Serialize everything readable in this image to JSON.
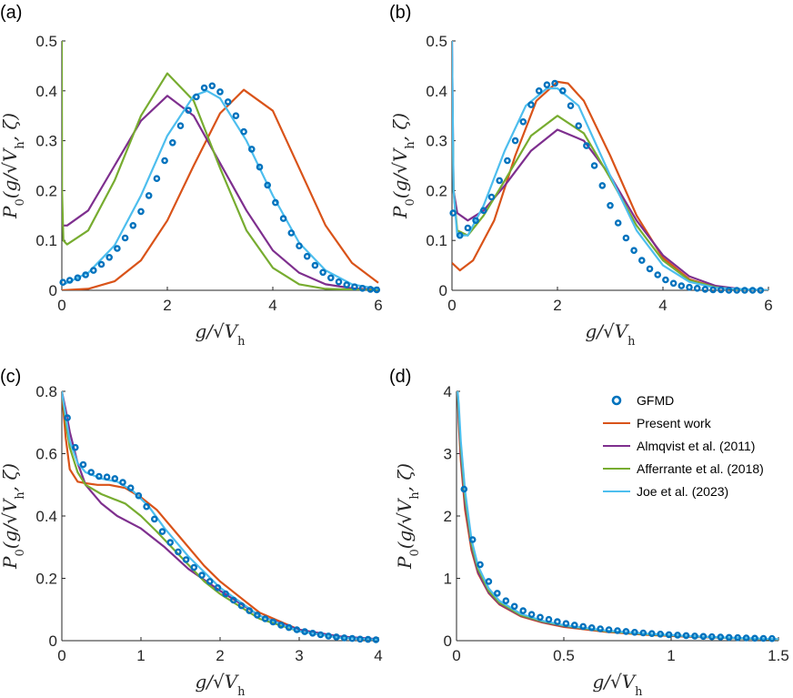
{
  "figure": {
    "colors": {
      "gfmd": "#0072BD",
      "present": "#D95319",
      "almqvist": "#7E2F8E",
      "afferrante": "#77AC30",
      "joe": "#4DBEEE"
    }
  },
  "legend": {
    "items": [
      {
        "key": "gfmd",
        "label": "GFMD",
        "style": "marker"
      },
      {
        "key": "present",
        "label": "Present work",
        "style": "line"
      },
      {
        "key": "almqvist",
        "label": "Almqvist et al. (2011)",
        "style": "line"
      },
      {
        "key": "afferrante",
        "label": "Afferrante et al. (2018)",
        "style": "line"
      },
      {
        "key": "joe",
        "label": "Joe et al. (2023)",
        "style": "line"
      }
    ]
  },
  "chart_data": [
    {
      "panel": "(a)",
      "type": "line",
      "xlabel": "g/√V_h",
      "ylabel": "P_0(g/√V_h, ζ)",
      "xlim": [
        0,
        6
      ],
      "ylim": [
        0,
        0.5
      ],
      "xticks": [
        0,
        2,
        4,
        6
      ],
      "yticks": [
        0,
        0.1,
        0.2,
        0.3,
        0.4,
        0.5
      ],
      "series": [
        {
          "name": "Present work",
          "key": "present",
          "x": [
            0,
            0.5,
            1,
            1.5,
            2,
            2.5,
            3,
            3.45,
            4,
            4.5,
            5,
            5.5,
            6
          ],
          "y": [
            0,
            0.003,
            0.018,
            0.06,
            0.14,
            0.25,
            0.355,
            0.402,
            0.36,
            0.245,
            0.13,
            0.055,
            0.015
          ]
        },
        {
          "name": "Almqvist et al. (2011)",
          "key": "almqvist",
          "x": [
            0,
            0.1,
            0.5,
            1,
            1.5,
            2,
            2.5,
            3,
            3.5,
            4,
            4.5,
            5,
            5.5,
            6
          ],
          "y": [
            0.13,
            0.13,
            0.16,
            0.25,
            0.34,
            0.39,
            0.35,
            0.255,
            0.16,
            0.08,
            0.035,
            0.012,
            0.004,
            0.001
          ]
        },
        {
          "name": "Afferrante et al. (2018)",
          "key": "afferrante",
          "x": [
            0,
            0.003,
            0.03,
            0.1,
            0.5,
            1,
            1.5,
            2,
            2.5,
            3,
            3.5,
            4,
            4.5,
            5,
            6
          ],
          "y": [
            0.5,
            0.2,
            0.1,
            0.092,
            0.12,
            0.22,
            0.35,
            0.435,
            0.38,
            0.245,
            0.12,
            0.045,
            0.012,
            0.003,
            0
          ]
        },
        {
          "name": "Joe et al. (2023)",
          "key": "joe",
          "x": [
            0,
            0.1,
            0.5,
            1,
            1.5,
            2,
            2.5,
            2.75,
            3,
            3.5,
            4,
            4.5,
            5,
            5.5,
            6
          ],
          "y": [
            0.01,
            0.015,
            0.035,
            0.09,
            0.19,
            0.31,
            0.39,
            0.4,
            0.385,
            0.3,
            0.19,
            0.095,
            0.04,
            0.012,
            0.003
          ]
        },
        {
          "name": "GFMD",
          "key": "gfmd",
          "style": "marker",
          "x": [
            0.02,
            0.15,
            0.3,
            0.45,
            0.6,
            0.75,
            0.9,
            1.05,
            1.2,
            1.35,
            1.5,
            1.65,
            1.8,
            1.95,
            2.1,
            2.25,
            2.4,
            2.55,
            2.7,
            2.85,
            3.0,
            3.15,
            3.3,
            3.45,
            3.6,
            3.75,
            3.9,
            4.05,
            4.2,
            4.35,
            4.5,
            4.65,
            4.8,
            4.95,
            5.1,
            5.25,
            5.4,
            5.55,
            5.7,
            5.85,
            5.97
          ],
          "y": [
            0.016,
            0.02,
            0.025,
            0.031,
            0.04,
            0.052,
            0.066,
            0.084,
            0.105,
            0.13,
            0.158,
            0.19,
            0.224,
            0.26,
            0.296,
            0.33,
            0.361,
            0.388,
            0.406,
            0.41,
            0.398,
            0.378,
            0.35,
            0.318,
            0.283,
            0.247,
            0.211,
            0.176,
            0.144,
            0.115,
            0.089,
            0.068,
            0.05,
            0.036,
            0.025,
            0.017,
            0.011,
            0.007,
            0.004,
            0.002,
            0.001
          ]
        }
      ]
    },
    {
      "panel": "(b)",
      "type": "line",
      "xlabel": "g/√V_h",
      "ylabel": "P_0(g/√V_h, ζ)",
      "xlim": [
        0,
        6
      ],
      "ylim": [
        0,
        0.5
      ],
      "xticks": [
        0,
        2,
        4,
        6
      ],
      "yticks": [
        0,
        0.1,
        0.2,
        0.3,
        0.4,
        0.5
      ],
      "series": [
        {
          "name": "Present work",
          "key": "present",
          "x": [
            0,
            0.15,
            0.4,
            0.8,
            1.2,
            1.6,
            2.0,
            2.2,
            2.5,
            3,
            3.5,
            4,
            4.5,
            5,
            5.5,
            6
          ],
          "y": [
            0.055,
            0.04,
            0.06,
            0.14,
            0.27,
            0.38,
            0.418,
            0.415,
            0.38,
            0.27,
            0.15,
            0.065,
            0.022,
            0.006,
            0.001,
            0
          ]
        },
        {
          "name": "Almqvist et al. (2011)",
          "key": "almqvist",
          "x": [
            0,
            0.03,
            0.1,
            0.3,
            0.6,
            1,
            1.5,
            2,
            2.5,
            3,
            3.5,
            4,
            4.5,
            5,
            5.5,
            6
          ],
          "y": [
            0.5,
            0.2,
            0.155,
            0.14,
            0.16,
            0.21,
            0.28,
            0.322,
            0.3,
            0.23,
            0.14,
            0.07,
            0.028,
            0.009,
            0.002,
            0
          ]
        },
        {
          "name": "Afferrante et al. (2018)",
          "key": "afferrante",
          "x": [
            0,
            0.03,
            0.1,
            0.3,
            0.6,
            1,
            1.5,
            2,
            2.5,
            3,
            3.5,
            4,
            4.5,
            5,
            5.5,
            6
          ],
          "y": [
            0.45,
            0.2,
            0.12,
            0.11,
            0.15,
            0.22,
            0.31,
            0.35,
            0.315,
            0.225,
            0.13,
            0.06,
            0.02,
            0.006,
            0.001,
            0
          ]
        },
        {
          "name": "Joe et al. (2023)",
          "key": "joe",
          "x": [
            0,
            0.03,
            0.1,
            0.3,
            0.6,
            1,
            1.4,
            1.8,
            2.0,
            2.4,
            3,
            3.5,
            4,
            4.5,
            5,
            6
          ],
          "y": [
            0.5,
            0.2,
            0.11,
            0.11,
            0.17,
            0.28,
            0.37,
            0.405,
            0.405,
            0.37,
            0.23,
            0.12,
            0.05,
            0.017,
            0.005,
            0
          ]
        },
        {
          "name": "GFMD",
          "key": "gfmd",
          "style": "marker",
          "x": [
            0.02,
            0.15,
            0.3,
            0.45,
            0.6,
            0.75,
            0.9,
            1.05,
            1.2,
            1.35,
            1.5,
            1.65,
            1.8,
            1.95,
            2.1,
            2.25,
            2.4,
            2.55,
            2.7,
            2.85,
            3.0,
            3.15,
            3.3,
            3.45,
            3.6,
            3.75,
            3.9,
            4.05,
            4.2,
            4.35,
            4.5,
            4.65,
            4.8,
            4.95,
            5.1,
            5.25,
            5.4,
            5.55,
            5.7,
            5.85
          ],
          "y": [
            0.155,
            0.11,
            0.125,
            0.14,
            0.16,
            0.187,
            0.22,
            0.26,
            0.3,
            0.338,
            0.372,
            0.4,
            0.412,
            0.415,
            0.4,
            0.37,
            0.33,
            0.29,
            0.25,
            0.21,
            0.17,
            0.135,
            0.105,
            0.08,
            0.06,
            0.043,
            0.031,
            0.021,
            0.014,
            0.009,
            0.006,
            0.004,
            0.002,
            0.001,
            0.001,
            0,
            0,
            0,
            0,
            0
          ]
        }
      ]
    },
    {
      "panel": "(c)",
      "type": "line",
      "xlabel": "g/√V_h",
      "ylabel": "P_0(g/√V_h, ζ)",
      "xlim": [
        0,
        4
      ],
      "ylim": [
        0,
        0.8
      ],
      "xticks": [
        0,
        1,
        2,
        3,
        4
      ],
      "yticks": [
        0,
        0.2,
        0.4,
        0.6,
        0.8
      ],
      "series": [
        {
          "name": "Present work",
          "key": "present",
          "x": [
            0,
            0.05,
            0.1,
            0.2,
            0.3,
            0.45,
            0.6,
            0.8,
            1,
            1.2,
            1.5,
            1.8,
            2,
            2.5,
            3,
            3.5,
            4
          ],
          "y": [
            0.8,
            0.65,
            0.55,
            0.51,
            0.505,
            0.5,
            0.5,
            0.49,
            0.46,
            0.42,
            0.33,
            0.24,
            0.19,
            0.09,
            0.035,
            0.012,
            0.003
          ]
        },
        {
          "name": "Almqvist et al. (2011)",
          "key": "almqvist",
          "x": [
            0,
            0.05,
            0.1,
            0.2,
            0.3,
            0.5,
            0.7,
            1,
            1.3,
            1.6,
            2,
            2.5,
            3,
            3.5,
            4
          ],
          "y": [
            0.8,
            0.74,
            0.67,
            0.57,
            0.5,
            0.44,
            0.4,
            0.36,
            0.3,
            0.23,
            0.16,
            0.08,
            0.035,
            0.014,
            0.005
          ]
        },
        {
          "name": "Afferrante et al. (2018)",
          "key": "afferrante",
          "x": [
            0,
            0.05,
            0.1,
            0.2,
            0.3,
            0.5,
            0.8,
            1,
            1.2,
            1.5,
            1.8,
            2,
            2.5,
            3,
            3.5,
            4
          ],
          "y": [
            0.8,
            0.7,
            0.62,
            0.54,
            0.5,
            0.47,
            0.44,
            0.4,
            0.35,
            0.27,
            0.19,
            0.15,
            0.07,
            0.03,
            0.01,
            0.003
          ]
        },
        {
          "name": "Joe et al. (2023)",
          "key": "joe",
          "x": [
            0,
            0.05,
            0.1,
            0.2,
            0.3,
            0.5,
            0.7,
            0.9,
            1.1,
            1.3,
            1.6,
            2,
            2.5,
            3,
            3.5,
            4
          ],
          "y": [
            0.8,
            0.72,
            0.64,
            0.57,
            0.54,
            0.52,
            0.51,
            0.48,
            0.43,
            0.36,
            0.27,
            0.17,
            0.08,
            0.03,
            0.01,
            0.003
          ]
        },
        {
          "name": "GFMD",
          "key": "gfmd",
          "style": "marker",
          "x": [
            0.07,
            0.17,
            0.27,
            0.37,
            0.47,
            0.57,
            0.67,
            0.77,
            0.87,
            0.97,
            1.07,
            1.17,
            1.27,
            1.37,
            1.47,
            1.57,
            1.67,
            1.77,
            1.87,
            1.97,
            2.07,
            2.17,
            2.27,
            2.37,
            2.47,
            2.57,
            2.67,
            2.77,
            2.87,
            2.97,
            3.07,
            3.17,
            3.27,
            3.37,
            3.47,
            3.57,
            3.67,
            3.77,
            3.87,
            3.97
          ],
          "y": [
            0.715,
            0.62,
            0.565,
            0.54,
            0.527,
            0.525,
            0.52,
            0.508,
            0.49,
            0.465,
            0.43,
            0.39,
            0.35,
            0.315,
            0.285,
            0.26,
            0.235,
            0.21,
            0.19,
            0.17,
            0.15,
            0.13,
            0.112,
            0.096,
            0.082,
            0.07,
            0.06,
            0.05,
            0.042,
            0.035,
            0.029,
            0.024,
            0.019,
            0.015,
            0.012,
            0.009,
            0.007,
            0.005,
            0.004,
            0.003
          ]
        }
      ]
    },
    {
      "panel": "(d)",
      "type": "line",
      "xlabel": "g/√V_h",
      "ylabel": "P_0(g/√V_h, ζ)",
      "xlim": [
        0,
        1.5
      ],
      "ylim": [
        0,
        4
      ],
      "xticks": [
        0,
        0.5,
        1,
        1.5
      ],
      "yticks": [
        0,
        1,
        2,
        3,
        4
      ],
      "series": [
        {
          "name": "Present work",
          "key": "present",
          "x": [
            0.005,
            0.01,
            0.02,
            0.04,
            0.07,
            0.1,
            0.15,
            0.2,
            0.3,
            0.4,
            0.5,
            0.7,
            0.9,
            1.1,
            1.3,
            1.5
          ],
          "y": [
            4,
            3.5,
            2.9,
            2.1,
            1.45,
            1.08,
            0.76,
            0.58,
            0.39,
            0.29,
            0.22,
            0.14,
            0.09,
            0.06,
            0.04,
            0.02
          ]
        },
        {
          "name": "Almqvist et al. (2011)",
          "key": "almqvist",
          "x": [
            0.005,
            0.01,
            0.02,
            0.04,
            0.07,
            0.1,
            0.15,
            0.2,
            0.3,
            0.4,
            0.5,
            0.7,
            0.9,
            1.1,
            1.3,
            1.5
          ],
          "y": [
            4,
            3.6,
            3.0,
            2.2,
            1.5,
            1.1,
            0.77,
            0.59,
            0.4,
            0.3,
            0.23,
            0.15,
            0.1,
            0.07,
            0.04,
            0.02
          ]
        },
        {
          "name": "Afferrante et al. (2018)",
          "key": "afferrante",
          "x": [
            0.005,
            0.01,
            0.02,
            0.04,
            0.07,
            0.1,
            0.15,
            0.2,
            0.3,
            0.4,
            0.5,
            0.7,
            0.9,
            1.1,
            1.3,
            1.5
          ],
          "y": [
            4,
            3.7,
            3.1,
            2.3,
            1.55,
            1.15,
            0.8,
            0.61,
            0.41,
            0.31,
            0.24,
            0.15,
            0.1,
            0.07,
            0.04,
            0.02
          ]
        },
        {
          "name": "Joe et al. (2023)",
          "key": "joe",
          "x": [
            0.005,
            0.01,
            0.02,
            0.04,
            0.07,
            0.1,
            0.15,
            0.2,
            0.3,
            0.4,
            0.5,
            0.7,
            0.9,
            1.1,
            1.3,
            1.5
          ],
          "y": [
            4,
            3.8,
            3.2,
            2.4,
            1.62,
            1.2,
            0.84,
            0.64,
            0.43,
            0.32,
            0.25,
            0.16,
            0.11,
            0.07,
            0.045,
            0.025
          ]
        },
        {
          "name": "GFMD",
          "key": "gfmd",
          "style": "marker",
          "x": [
            0.035,
            0.075,
            0.11,
            0.15,
            0.19,
            0.23,
            0.27,
            0.31,
            0.35,
            0.39,
            0.43,
            0.47,
            0.51,
            0.55,
            0.59,
            0.63,
            0.67,
            0.71,
            0.75,
            0.79,
            0.83,
            0.87,
            0.91,
            0.95,
            0.99,
            1.03,
            1.07,
            1.11,
            1.15,
            1.19,
            1.23,
            1.27,
            1.31,
            1.35,
            1.39,
            1.43,
            1.47
          ],
          "y": [
            2.43,
            1.62,
            1.22,
            0.95,
            0.76,
            0.64,
            0.55,
            0.48,
            0.42,
            0.375,
            0.34,
            0.305,
            0.275,
            0.25,
            0.228,
            0.208,
            0.19,
            0.175,
            0.16,
            0.147,
            0.135,
            0.124,
            0.114,
            0.105,
            0.097,
            0.089,
            0.082,
            0.075,
            0.069,
            0.063,
            0.058,
            0.053,
            0.048,
            0.044,
            0.04,
            0.037,
            0.034
          ]
        }
      ]
    }
  ]
}
